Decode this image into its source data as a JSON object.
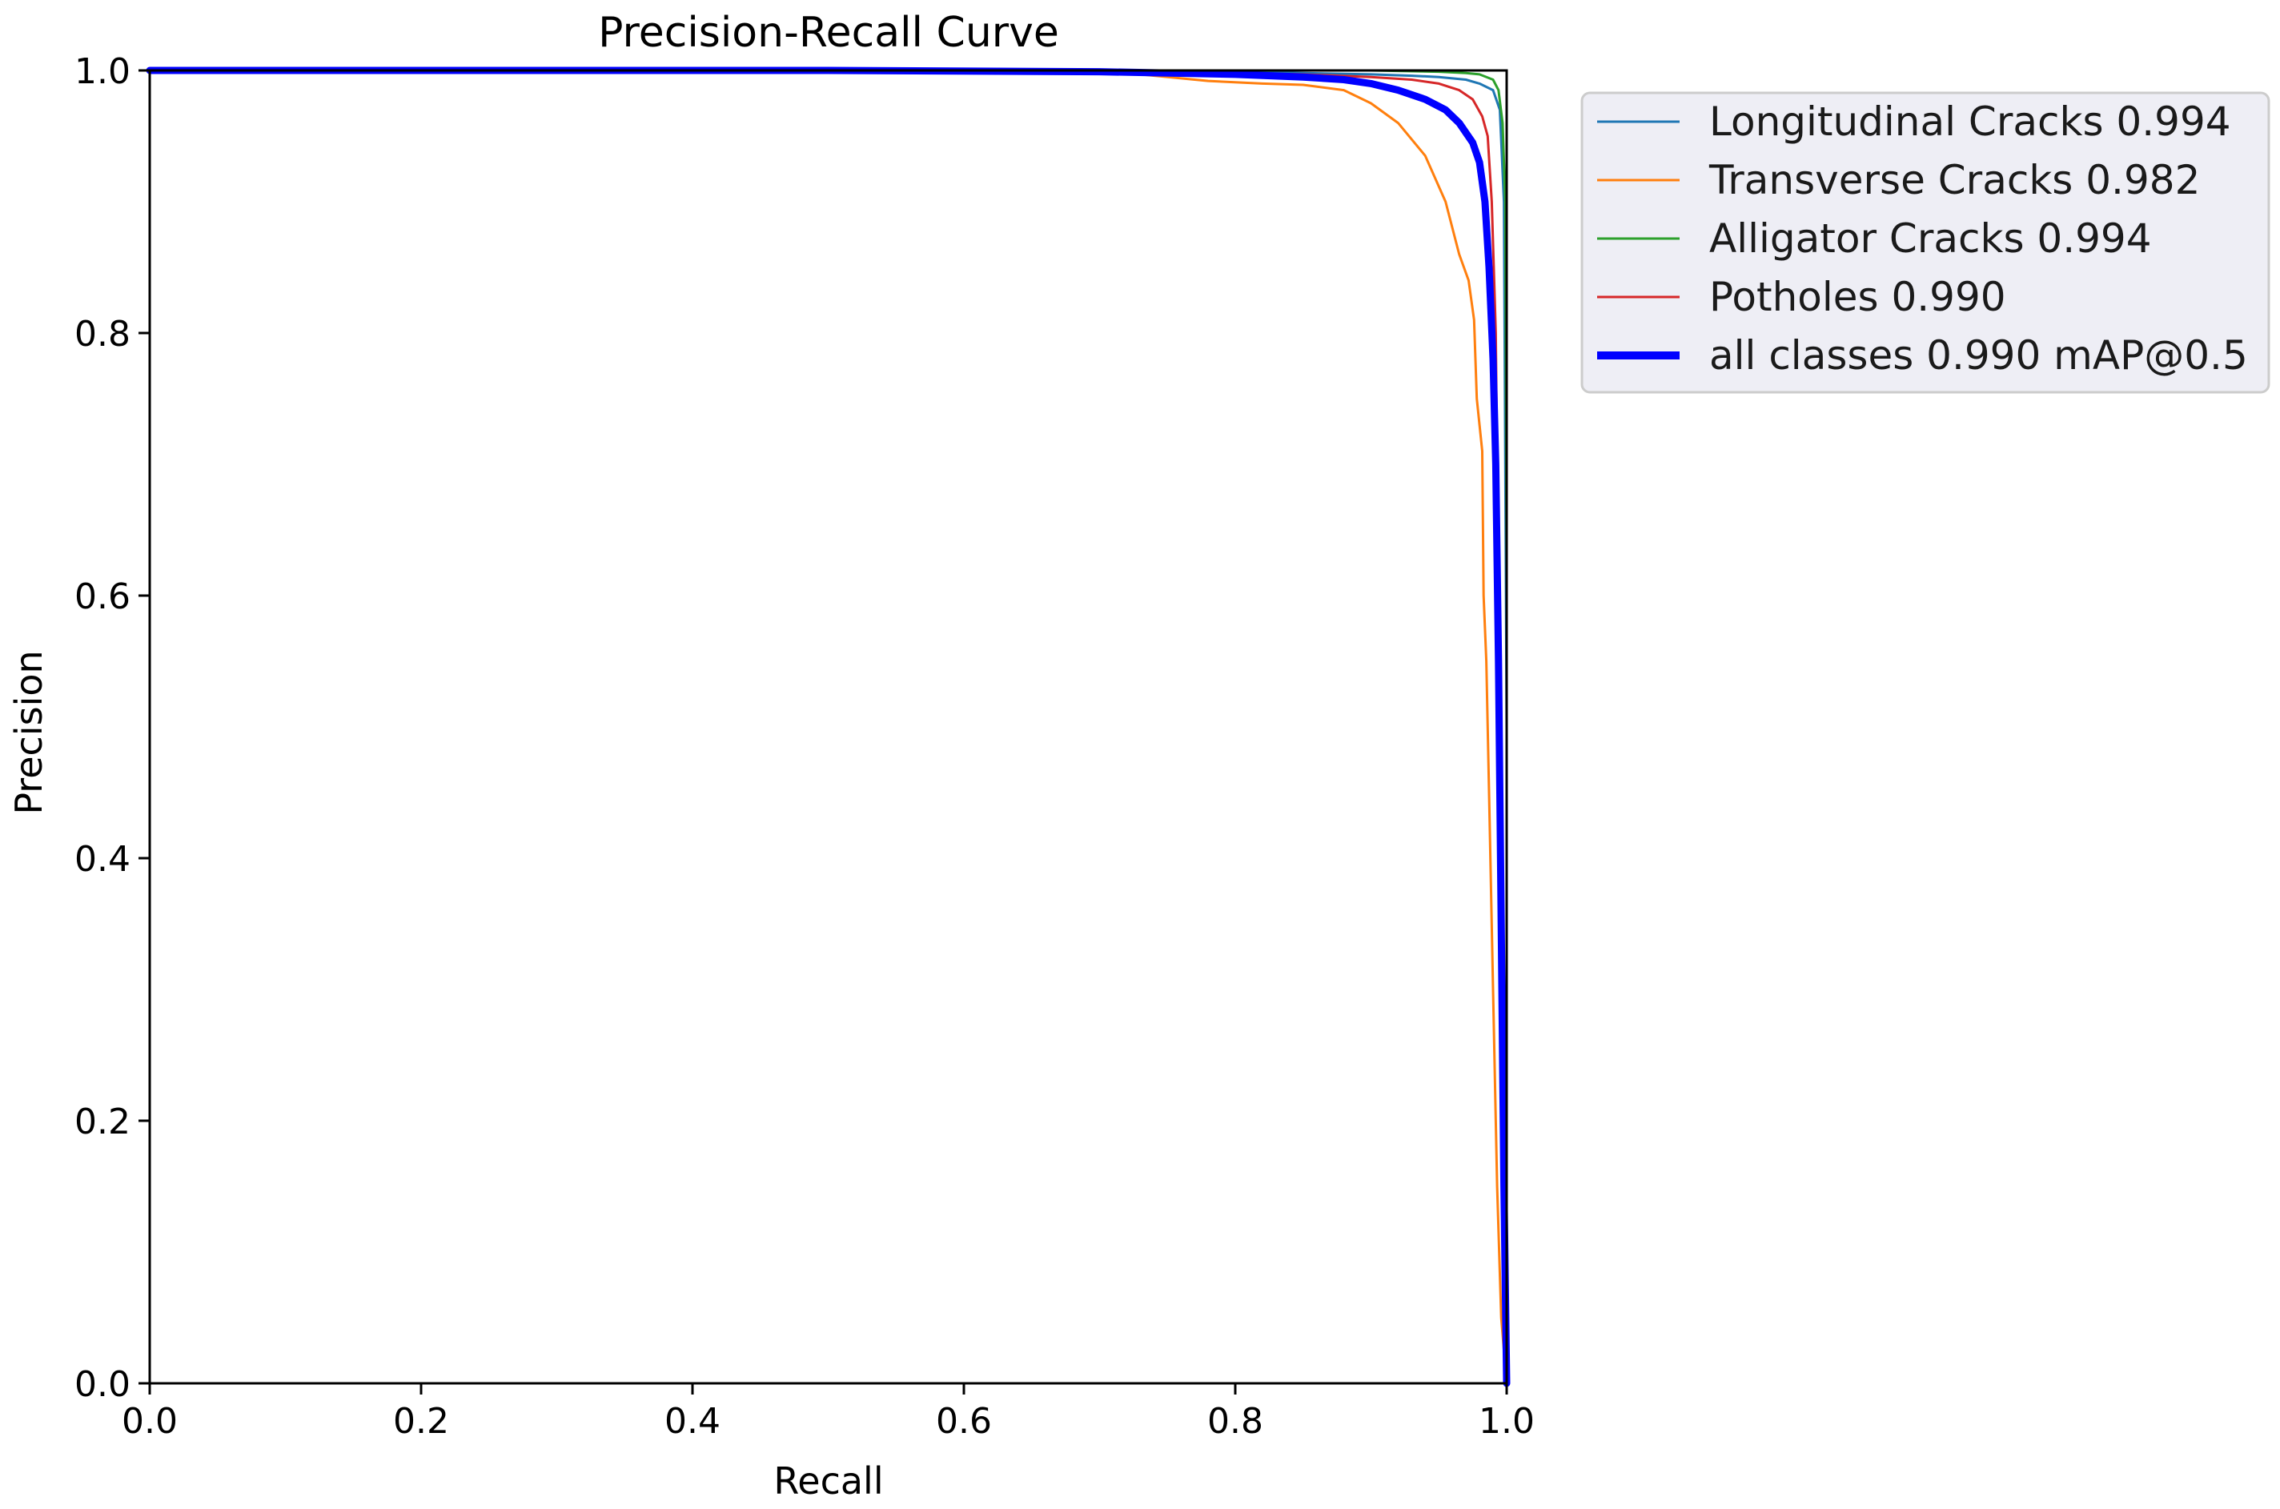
{
  "chart_data": {
    "type": "line",
    "title": "Precision-Recall Curve",
    "xlabel": "Recall",
    "ylabel": "Precision",
    "xlim": [
      0,
      1
    ],
    "ylim": [
      0,
      1
    ],
    "x_ticks": [
      "0.0",
      "0.2",
      "0.4",
      "0.6",
      "0.8",
      "1.0"
    ],
    "y_ticks": [
      "0.0",
      "0.2",
      "0.4",
      "0.6",
      "0.8",
      "1.0"
    ],
    "grid": false,
    "legend_position": "outside-top-right",
    "series": [
      {
        "name": "Longitudinal Cracks 0.994",
        "color": "#1f77b4",
        "x": [
          0.0,
          0.5,
          0.7,
          0.8,
          0.85,
          0.9,
          0.93,
          0.95,
          0.97,
          0.98,
          0.99,
          0.995,
          0.998,
          1.0,
          1.0
        ],
        "y": [
          1.0,
          1.0,
          1.0,
          0.999,
          0.998,
          0.997,
          0.996,
          0.995,
          0.993,
          0.99,
          0.985,
          0.97,
          0.9,
          0.5,
          0.0
        ]
      },
      {
        "name": "Transverse Cracks 0.982",
        "color": "#ff7f0e",
        "x": [
          0.0,
          0.5,
          0.7,
          0.78,
          0.82,
          0.85,
          0.88,
          0.9,
          0.92,
          0.94,
          0.955,
          0.965,
          0.972,
          0.976,
          0.978,
          0.98,
          0.982,
          0.983,
          0.985,
          0.987,
          0.99,
          0.993,
          0.996,
          1.0
        ],
        "y": [
          1.0,
          1.0,
          1.0,
          0.992,
          0.99,
          0.989,
          0.985,
          0.975,
          0.96,
          0.935,
          0.9,
          0.86,
          0.84,
          0.81,
          0.75,
          0.73,
          0.71,
          0.6,
          0.55,
          0.45,
          0.3,
          0.15,
          0.05,
          0.0
        ]
      },
      {
        "name": "Alligator Cracks 0.994",
        "color": "#2ca02c",
        "x": [
          0.0,
          0.5,
          0.8,
          0.9,
          0.95,
          0.97,
          0.98,
          0.99,
          0.994,
          0.997,
          0.999,
          1.0,
          1.0
        ],
        "y": [
          1.0,
          1.0,
          1.0,
          1.0,
          0.999,
          0.998,
          0.997,
          0.993,
          0.985,
          0.96,
          0.9,
          0.6,
          0.0
        ]
      },
      {
        "name": "Potholes 0.990",
        "color": "#d62728",
        "x": [
          0.0,
          0.5,
          0.75,
          0.85,
          0.9,
          0.93,
          0.95,
          0.965,
          0.975,
          0.982,
          0.986,
          0.989,
          0.992,
          0.994,
          0.996,
          0.998,
          1.0
        ],
        "y": [
          1.0,
          1.0,
          0.999,
          0.997,
          0.995,
          0.993,
          0.99,
          0.985,
          0.978,
          0.965,
          0.95,
          0.9,
          0.8,
          0.6,
          0.4,
          0.2,
          0.0
        ]
      },
      {
        "name": "all classes 0.990 mAP@0.5",
        "color": "#0000ff",
        "bold": true,
        "x": [
          0.0,
          0.5,
          0.7,
          0.8,
          0.85,
          0.88,
          0.9,
          0.92,
          0.94,
          0.955,
          0.965,
          0.975,
          0.98,
          0.984,
          0.987,
          0.99,
          0.992,
          0.994,
          0.996,
          0.998,
          1.0
        ],
        "y": [
          1.0,
          1.0,
          0.999,
          0.997,
          0.995,
          0.993,
          0.99,
          0.985,
          0.978,
          0.97,
          0.96,
          0.945,
          0.93,
          0.9,
          0.85,
          0.78,
          0.7,
          0.55,
          0.35,
          0.15,
          0.0
        ]
      }
    ]
  }
}
